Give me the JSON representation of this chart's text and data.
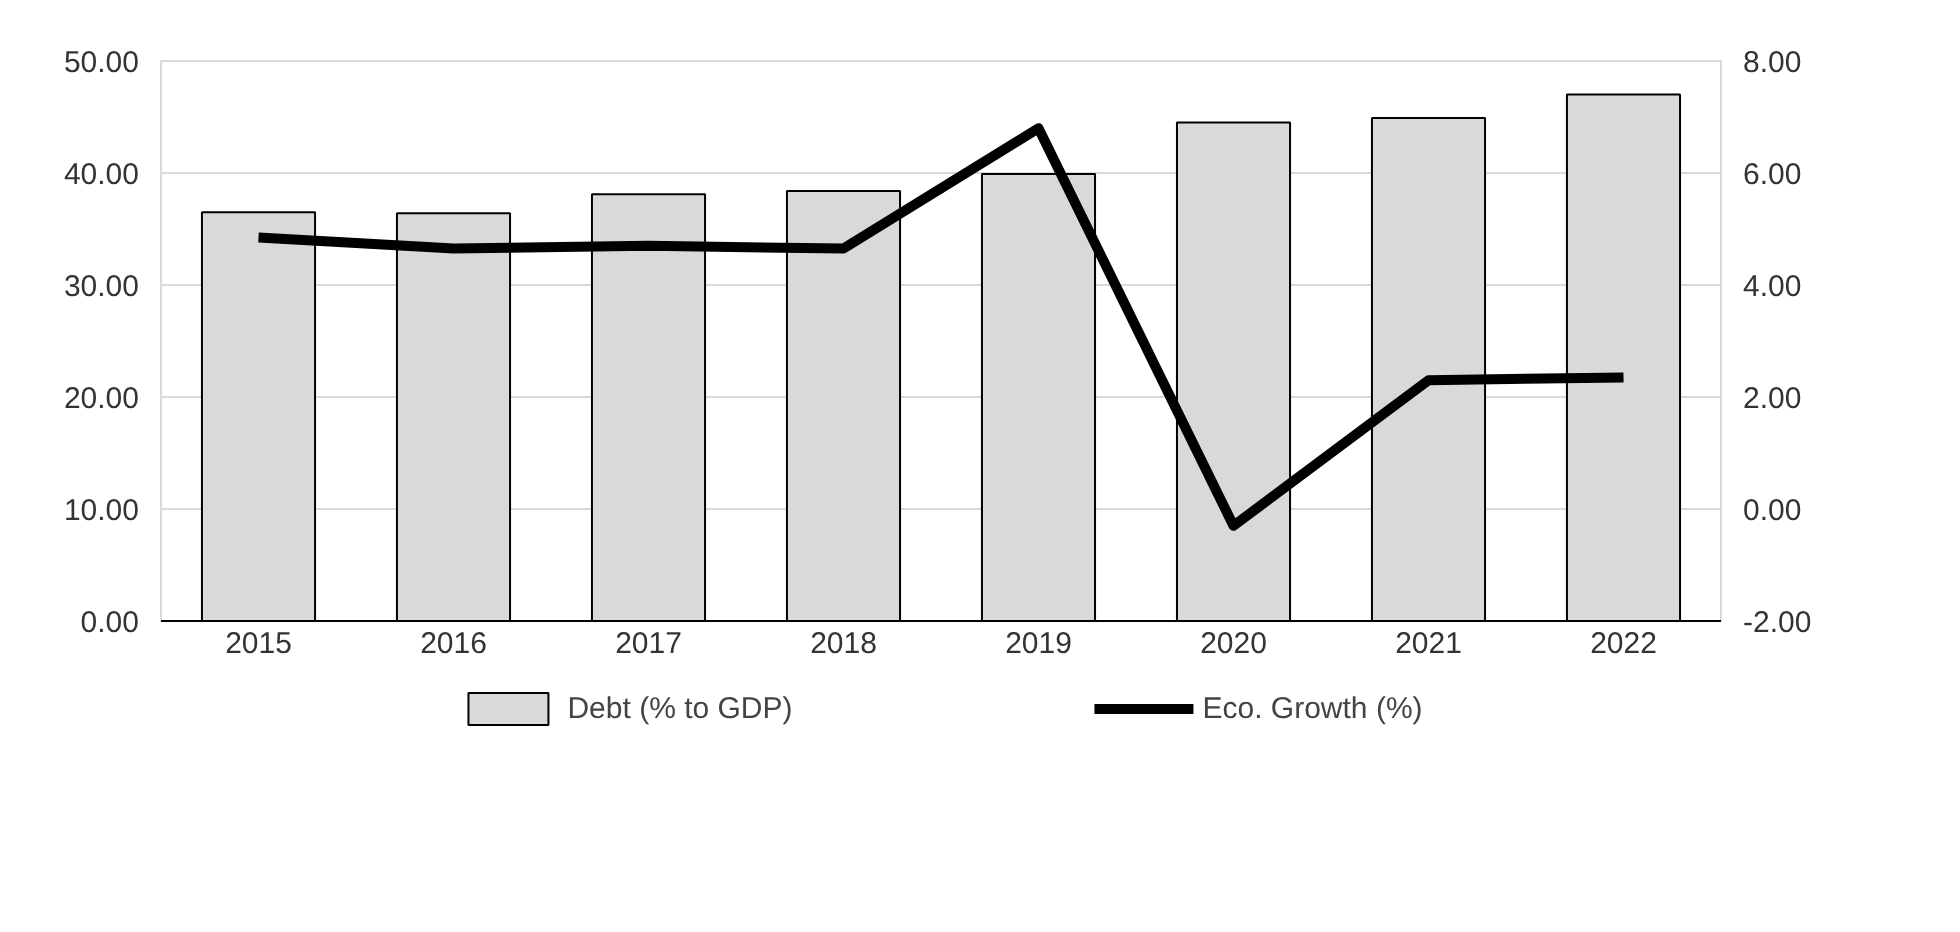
{
  "chart_data": {
    "type": "bar",
    "categories": [
      "2015",
      "2016",
      "2017",
      "2018",
      "2019",
      "2020",
      "2021",
      "2022"
    ],
    "series": [
      {
        "name": "Debt (% to GDP)",
        "color": "#d9d9d9",
        "values": [
          36.5,
          36.4,
          38.1,
          38.4,
          39.9,
          44.5,
          44.9,
          47.0
        ]
      },
      {
        "name": "Eco. Growth (%)",
        "type": "line",
        "axis": "y2",
        "color": "#000000",
        "values": [
          4.85,
          4.65,
          4.7,
          4.65,
          6.8,
          -0.3,
          2.3,
          2.35
        ]
      }
    ],
    "ylim": [
      0,
      50
    ],
    "yticks": [
      {
        "value": 0,
        "label": "0.00"
      },
      {
        "value": 10,
        "label": "10.00"
      },
      {
        "value": 20,
        "label": "20.00"
      },
      {
        "value": 30,
        "label": "30.00"
      },
      {
        "value": 40,
        "label": "40.00"
      },
      {
        "value": 50,
        "label": "50.00"
      }
    ],
    "y2lim": [
      -2,
      8
    ],
    "y2ticks": [
      {
        "value": -2,
        "label": "-2.00"
      },
      {
        "value": 0,
        "label": "0.00"
      },
      {
        "value": 2,
        "label": "2.00"
      },
      {
        "value": 4,
        "label": "4.00"
      },
      {
        "value": 6,
        "label": "6.00"
      },
      {
        "value": 8,
        "label": "8.00"
      }
    ],
    "grid": "y",
    "legend": "bottom",
    "marker": "none",
    "line_style": "solid"
  }
}
